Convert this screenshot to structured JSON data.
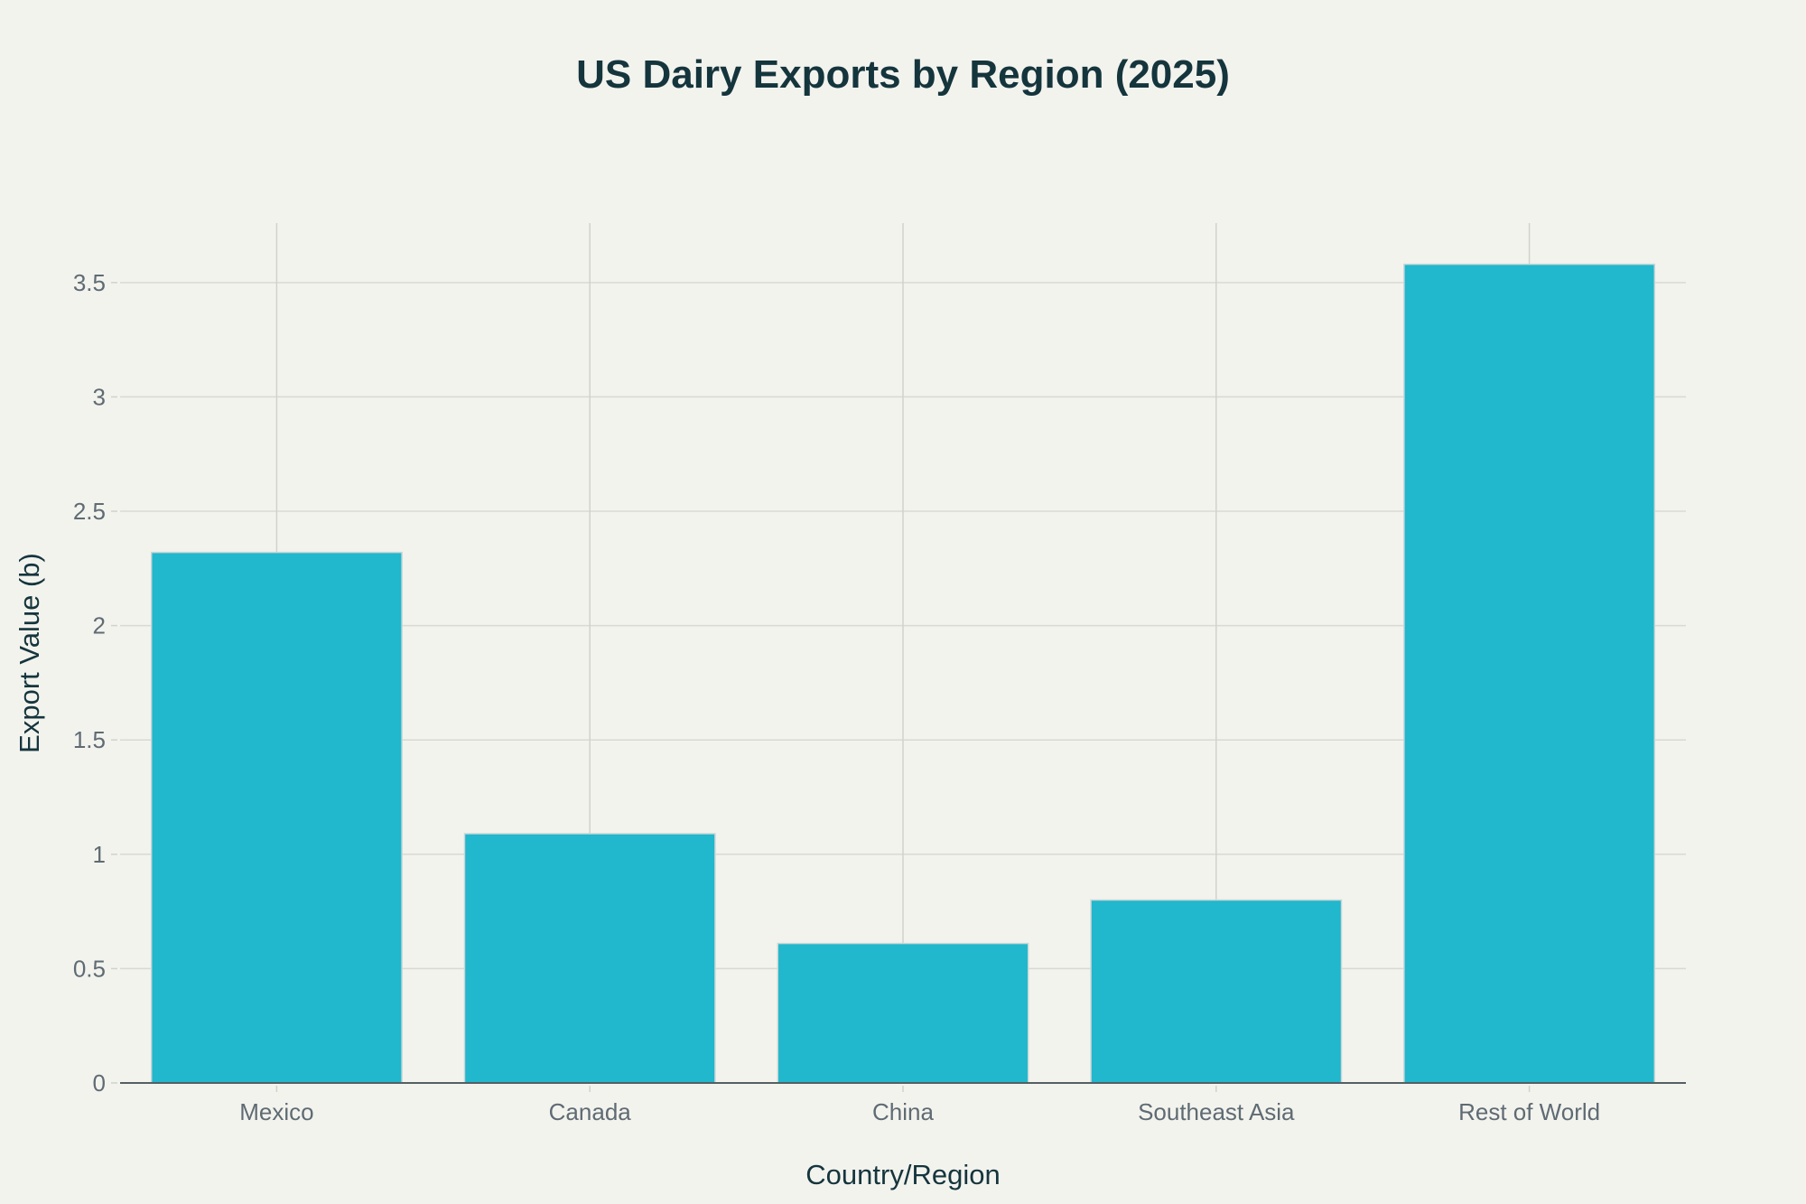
{
  "chart_data": {
    "type": "bar",
    "title": "US Dairy Exports by Region (2025)",
    "xlabel": "Country/Region",
    "ylabel": "Export Value (b)",
    "categories": [
      "Mexico",
      "Canada",
      "China",
      "Southeast Asia",
      "Rest of World"
    ],
    "values": [
      2.32,
      1.09,
      0.61,
      0.8,
      3.58
    ],
    "ylim": [
      0,
      3.76
    ],
    "yticks": [
      0,
      0.5,
      1,
      1.5,
      2,
      2.5,
      3,
      3.5
    ],
    "ytick_labels": [
      "0",
      "0.5",
      "1",
      "1.5",
      "2",
      "2.5",
      "3",
      "3.5"
    ],
    "grid": true,
    "legend": "none",
    "colors": {
      "bar": "#21b7cc",
      "background": "#f3f3ee",
      "title": "#15353d",
      "tick_text": "#5f6b73"
    }
  }
}
